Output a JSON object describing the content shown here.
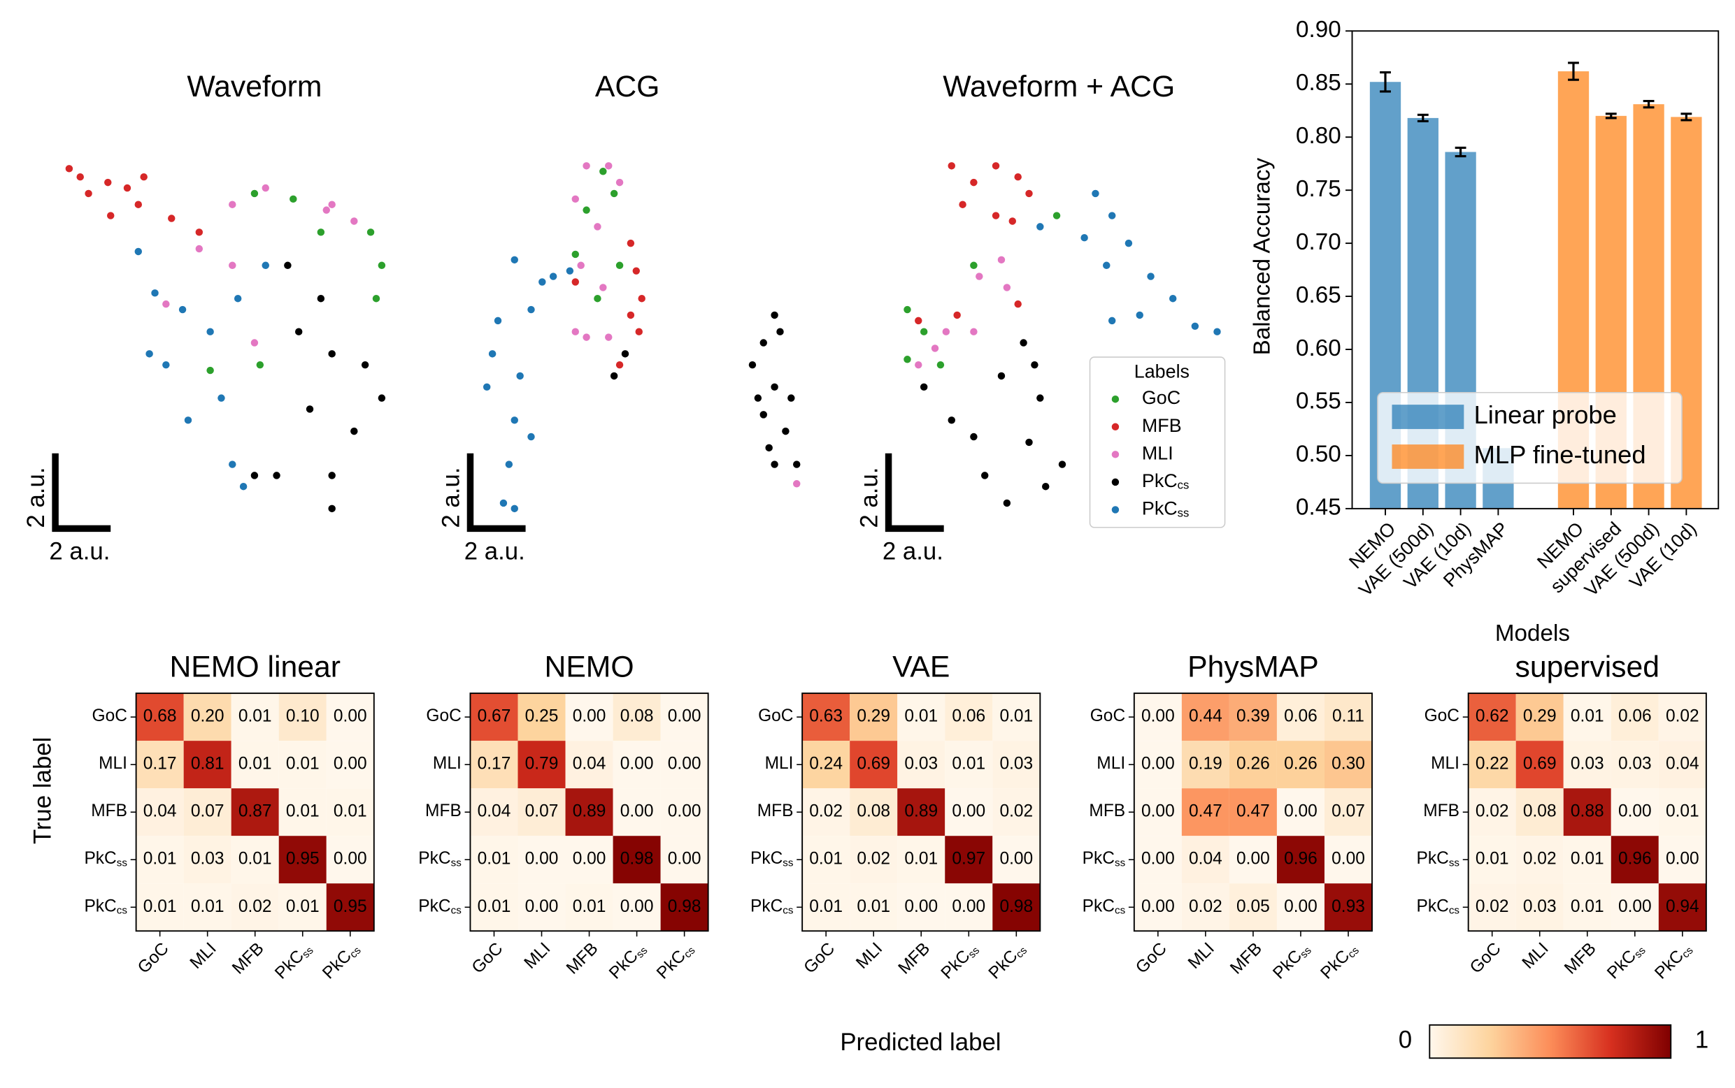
{
  "figure": {
    "xlabel": "Predicted label",
    "ylabel": "True label"
  },
  "chart_data": [
    {
      "type": "scatter",
      "title": "Waveform",
      "xlim": [
        0,
        12.4
      ],
      "ylim": [
        0,
        13.6
      ],
      "scale_bar": {
        "length": 2,
        "label": "2 a.u."
      },
      "series": [
        {
          "name": "GoC",
          "color": "#2ca02c",
          "x": [
            7.4,
            8.8,
            9.8,
            11.6,
            12.0,
            11.8,
            5.8,
            7.6
          ],
          "y": [
            12.0,
            11.8,
            10.6,
            10.6,
            9.4,
            8.2,
            5.6,
            5.8
          ]
        },
        {
          "name": "MFB",
          "color": "#d62728",
          "x": [
            0.7,
            1.1,
            1.4,
            2.1,
            2.8,
            3.2,
            2.2,
            3.4,
            4.4,
            5.4
          ],
          "y": [
            12.9,
            12.6,
            12.0,
            12.4,
            12.2,
            11.6,
            11.2,
            12.6,
            11.1,
            10.6
          ]
        },
        {
          "name": "MLI",
          "color": "#e377c2",
          "x": [
            6.6,
            7.8,
            10.2,
            11.0,
            5.4,
            6.6,
            4.2,
            7.4,
            10.0
          ],
          "y": [
            11.6,
            12.2,
            11.6,
            11.0,
            10.0,
            9.4,
            8.0,
            6.6,
            11.4
          ]
        },
        {
          "name": "PkC",
          "subscript": "cs",
          "color": "#000000",
          "x": [
            8.6,
            9.8,
            9.0,
            10.2,
            11.4,
            9.4,
            11.0,
            10.2,
            10.2,
            12.0,
            8.2,
            7.4
          ],
          "y": [
            9.4,
            8.2,
            7.0,
            6.2,
            5.8,
            4.2,
            3.4,
            1.8,
            0.6,
            4.6,
            1.8,
            1.8
          ]
        },
        {
          "name": "PkC",
          "subscript": "ss",
          "color": "#1f77b4",
          "x": [
            3.2,
            3.8,
            4.8,
            5.8,
            4.2,
            6.2,
            5.0,
            6.6,
            7.0,
            3.6,
            7.8,
            6.8
          ],
          "y": [
            9.9,
            8.4,
            7.8,
            7.0,
            5.8,
            4.6,
            3.8,
            2.2,
            1.4,
            6.2,
            9.4,
            8.2
          ]
        }
      ]
    },
    {
      "type": "scatter",
      "title": "ACG",
      "xlim": [
        0,
        7
      ],
      "ylim": [
        0,
        13.6
      ],
      "scale_bar": {
        "length": 2,
        "label": "2 a.u."
      },
      "series": [
        {
          "name": "GoC",
          "color": "#2ca02c",
          "x": [
            5.4,
            5.8,
            4.8,
            4.4,
            5.2,
            6.0
          ],
          "y": [
            12.8,
            12.0,
            11.4,
            9.8,
            8.2,
            9.4
          ]
        },
        {
          "name": "MFB",
          "color": "#d62728",
          "x": [
            6.4,
            6.6,
            6.8,
            6.4,
            6.7,
            6.0,
            4.4
          ],
          "y": [
            10.2,
            9.2,
            8.2,
            7.6,
            7.0,
            5.8,
            8.8
          ]
        },
        {
          "name": "MLI",
          "color": "#e377c2",
          "x": [
            4.8,
            5.6,
            6.0,
            4.4,
            5.2,
            4.6,
            5.4,
            4.8,
            4.4,
            5.6
          ],
          "y": [
            13.0,
            13.0,
            12.4,
            11.8,
            10.8,
            9.4,
            8.6,
            6.8,
            7.0,
            6.8
          ]
        },
        {
          "name": "PkC",
          "subscript": "cs",
          "color": "#000000",
          "x": [
            6.2,
            5.8
          ],
          "y": [
            6.2,
            5.4
          ]
        },
        {
          "name": "PkC",
          "subscript": "ss",
          "color": "#1f77b4",
          "x": [
            2.2,
            3.2,
            2.8,
            1.6,
            1.4,
            2.4,
            1.2,
            2.2,
            2.8,
            2.0,
            1.8,
            2.2,
            3.6,
            4.2
          ],
          "y": [
            9.6,
            8.8,
            7.8,
            7.4,
            6.2,
            5.4,
            5.0,
            3.8,
            3.2,
            2.2,
            0.8,
            0.6,
            9.0,
            9.2
          ]
        }
      ]
    },
    {
      "type": "scatter",
      "title": "Waveform + ACG",
      "xlim": [
        0,
        18
      ],
      "ylim": [
        0,
        13.6
      ],
      "scale_bar": {
        "length": 2,
        "label": "2 a.u."
      },
      "legend": "lower right",
      "legend_title": "Labels",
      "series": [
        {
          "name": "GoC",
          "color": "#2ca02c",
          "x": [
            6.2,
            6.8,
            6.2,
            7.4,
            8.6,
            11.6
          ],
          "y": [
            7.8,
            7.0,
            6.0,
            5.8,
            9.4,
            11.2
          ]
        },
        {
          "name": "MFB",
          "color": "#d62728",
          "x": [
            7.8,
            8.6,
            9.4,
            10.2,
            8.2,
            9.4,
            10.6,
            10.0,
            6.6,
            8.0,
            10.2
          ],
          "y": [
            13.0,
            12.4,
            13.0,
            12.6,
            11.6,
            11.2,
            12.0,
            11.0,
            7.4,
            7.6,
            8.0
          ]
        },
        {
          "name": "MLI",
          "color": "#e377c2",
          "x": [
            8.8,
            9.6,
            9.8,
            7.6,
            8.6,
            7.2,
            6.6,
            2.2
          ],
          "y": [
            9.0,
            9.6,
            8.6,
            7.0,
            7.0,
            6.4,
            5.8,
            1.5
          ]
        },
        {
          "name": "PkC",
          "subscript": "cs",
          "color": "#000000",
          "x": [
            1.4,
            1.0,
            0.6,
            1.4,
            1.0,
            1.8,
            1.2,
            2.2,
            1.6,
            2.0,
            0.8,
            1.4,
            7.8,
            8.6,
            9.6,
            10.8,
            11.0,
            10.6,
            9.0,
            9.8,
            11.2,
            11.8,
            6.8,
            10.4
          ],
          "y": [
            7.6,
            6.6,
            5.8,
            5.0,
            4.0,
            3.4,
            2.8,
            2.2,
            7.0,
            4.6,
            4.6,
            2.2,
            3.8,
            3.2,
            5.4,
            5.8,
            4.6,
            3.0,
            1.8,
            0.8,
            1.4,
            2.2,
            5.0,
            6.6
          ]
        },
        {
          "name": "PkC",
          "subscript": "ss",
          "color": "#1f77b4",
          "x": [
            13.0,
            13.6,
            12.6,
            13.4,
            14.2,
            15.0,
            15.8,
            14.6,
            16.6,
            17.4,
            13.6,
            11.0
          ],
          "y": [
            12.0,
            11.2,
            10.4,
            9.4,
            10.2,
            9.0,
            8.2,
            7.6,
            7.2,
            7.0,
            7.4,
            10.8
          ]
        }
      ]
    },
    {
      "type": "bar",
      "ylabel": "Balanced Accuracy",
      "xlabel": "Models",
      "ylim": [
        0.45,
        0.9
      ],
      "yticks": [
        0.45,
        {
          "value": 0.5,
          "label": "0.50"
        },
        0.55,
        {
          "value": 0.6,
          "label": "0.60"
        },
        0.65,
        {
          "value": 0.7,
          "label": "0.70"
        },
        0.75,
        {
          "value": 0.8,
          "label": "0.80"
        },
        0.85,
        {
          "value": 0.9,
          "label": "0.90"
        }
      ],
      "alpha": 0.7,
      "legend": "lower center",
      "series": [
        {
          "name": "Linear probe",
          "color": "#1f77b4",
          "categories": [
            "NEMO",
            "VAE (500d)",
            "VAE (10d)",
            "PhysMAP"
          ],
          "values": [
            0.852,
            0.818,
            0.786,
            0.507
          ],
          "errors": [
            0.009,
            0.003,
            0.004,
            null
          ]
        },
        {
          "name": "MLP fine-tuned",
          "color": "#ff7f0e",
          "categories": [
            "NEMO",
            "supervised",
            "VAE (500d)",
            "VAE (10d)"
          ],
          "values": [
            0.862,
            0.82,
            0.831,
            0.819
          ],
          "errors": [
            0.008,
            0.002,
            0.003,
            0.003
          ]
        }
      ]
    },
    {
      "type": "heatmap",
      "title": "NEMO linear",
      "categories": [
        "GoC",
        "MLI",
        "MFB",
        "PkC",
        "PkC"
      ],
      "subscripts": [
        null,
        null,
        null,
        "ss",
        "cs"
      ],
      "values": [
        [
          0.68,
          0.2,
          0.01,
          0.1,
          0
        ],
        [
          0.17,
          0.81,
          0.01,
          0.01,
          0
        ],
        [
          0.04,
          0.07,
          0.87,
          0.01,
          0.01
        ],
        [
          0.01,
          0.03,
          0.01,
          0.95,
          0
        ],
        [
          0.01,
          0.01,
          0.02,
          0.01,
          0.95
        ]
      ],
      "value_labels": [
        [
          "0.68",
          "0.20",
          "0.01",
          "0.10",
          "0.00"
        ],
        [
          "0.17",
          "0.81",
          "0.01",
          "0.01",
          "0.00"
        ],
        [
          "0.04",
          "0.07",
          "0.87",
          "0.01",
          "0.01"
        ],
        [
          "0.01",
          "0.03",
          "0.01",
          "0.95",
          "0.00"
        ],
        [
          "0.01",
          "0.01",
          "0.02",
          "0.01",
          "0.95"
        ]
      ]
    },
    {
      "type": "heatmap",
      "title": "NEMO",
      "categories": [
        "GoC",
        "MLI",
        "MFB",
        "PkC",
        "PkC"
      ],
      "subscripts": [
        null,
        null,
        null,
        "ss",
        "cs"
      ],
      "values": [
        [
          0.67,
          0.25,
          0,
          0.08,
          0
        ],
        [
          0.17,
          0.79,
          0.04,
          0,
          0
        ],
        [
          0.04,
          0.07,
          0.89,
          0,
          0
        ],
        [
          0.01,
          0,
          0,
          0.98,
          0
        ],
        [
          0.01,
          0,
          0.01,
          0,
          0.98
        ]
      ],
      "value_labels": [
        [
          "0.67",
          "0.25",
          "0.00",
          "0.08",
          "0.00"
        ],
        [
          "0.17",
          "0.79",
          "0.04",
          "0.00",
          "0.00"
        ],
        [
          "0.04",
          "0.07",
          "0.89",
          "0.00",
          "0.00"
        ],
        [
          "0.01",
          "0.00",
          "0.00",
          "0.98",
          "0.00"
        ],
        [
          "0.01",
          "0.00",
          "0.01",
          "0.00",
          "0.98"
        ]
      ]
    },
    {
      "type": "heatmap",
      "title": "VAE",
      "categories": [
        "GoC",
        "MLI",
        "MFB",
        "PkC",
        "PkC"
      ],
      "subscripts": [
        null,
        null,
        null,
        "ss",
        "cs"
      ],
      "values": [
        [
          0.63,
          0.29,
          0.01,
          0.06,
          0.01
        ],
        [
          0.24,
          0.69,
          0.03,
          0.01,
          0.03
        ],
        [
          0.02,
          0.08,
          0.89,
          0,
          0.02
        ],
        [
          0.01,
          0.02,
          0.01,
          0.97,
          0
        ],
        [
          0.01,
          0.01,
          0,
          0,
          0.98
        ]
      ],
      "value_labels": [
        [
          "0.63",
          "0.29",
          "0.01",
          "0.06",
          "0.01"
        ],
        [
          "0.24",
          "0.69",
          "0.03",
          "0.01",
          "0.03"
        ],
        [
          "0.02",
          "0.08",
          "0.89",
          "0.00",
          "0.02"
        ],
        [
          "0.01",
          "0.02",
          "0.01",
          "0.97",
          "0.00"
        ],
        [
          "0.01",
          "0.01",
          "0.00",
          "0.00",
          "0.98"
        ]
      ]
    },
    {
      "type": "heatmap",
      "title": "PhysMAP",
      "categories": [
        "GoC",
        "MLI",
        "MFB",
        "PkC",
        "PkC"
      ],
      "subscripts": [
        null,
        null,
        null,
        "ss",
        "cs"
      ],
      "values": [
        [
          0,
          0.44,
          0.39,
          0.06,
          0.11
        ],
        [
          0,
          0.19,
          0.26,
          0.26,
          0.3
        ],
        [
          0,
          0.47,
          0.47,
          0,
          0.07
        ],
        [
          0,
          0.04,
          0,
          0.96,
          0
        ],
        [
          0,
          0.02,
          0.05,
          0,
          0.93
        ]
      ],
      "value_labels": [
        [
          "0.00",
          "0.44",
          "0.39",
          "0.06",
          "0.11"
        ],
        [
          "0.00",
          "0.19",
          "0.26",
          "0.26",
          "0.30"
        ],
        [
          "0.00",
          "0.47",
          "0.47",
          "0.00",
          "0.07"
        ],
        [
          "0.00",
          "0.04",
          "0.00",
          "0.96",
          "0.00"
        ],
        [
          "0.00",
          "0.02",
          "0.05",
          "0.00",
          "0.93"
        ]
      ]
    },
    {
      "type": "heatmap",
      "title": "supervised",
      "categories": [
        "GoC",
        "MLI",
        "MFB",
        "PkC",
        "PkC"
      ],
      "subscripts": [
        null,
        null,
        null,
        "ss",
        "cs"
      ],
      "values": [
        [
          0.62,
          0.29,
          0.01,
          0.06,
          0.02
        ],
        [
          0.22,
          0.69,
          0.03,
          0.03,
          0.04
        ],
        [
          0.02,
          0.08,
          0.88,
          0,
          0.01
        ],
        [
          0.01,
          0.02,
          0.01,
          0.96,
          0
        ],
        [
          0.02,
          0.03,
          0.01,
          0,
          0.94
        ]
      ],
      "value_labels": [
        [
          "0.62",
          "0.29",
          "0.01",
          "0.06",
          "0.02"
        ],
        [
          "0.22",
          "0.69",
          "0.03",
          "0.03",
          "0.04"
        ],
        [
          "0.02",
          "0.08",
          "0.88",
          "0.00",
          "0.01"
        ],
        [
          "0.01",
          "0.02",
          "0.01",
          "0.96",
          "0.00"
        ],
        [
          "0.02",
          "0.03",
          "0.01",
          "0.00",
          "0.94"
        ]
      ]
    },
    {
      "type": "colorbar",
      "clim": [
        0,
        1
      ],
      "ticks": [
        0,
        1
      ],
      "colormap": [
        "#fff7ec",
        "#fdd49e",
        "#fc8d59",
        "#d7301f",
        "#7f0000"
      ]
    }
  ]
}
